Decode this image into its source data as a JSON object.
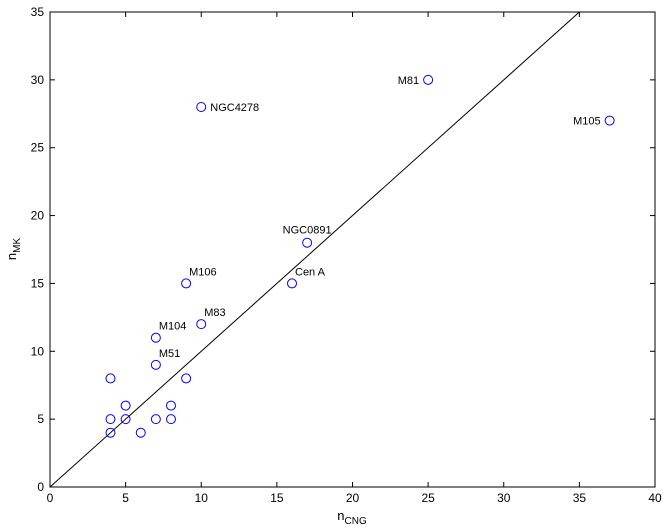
{
  "chart_data": {
    "type": "scatter",
    "title": "",
    "xlabel": "n",
    "xlabel_sub": "CNG",
    "ylabel": "n",
    "ylabel_sub": "MK",
    "xlim": [
      0,
      40
    ],
    "ylim": [
      0,
      35
    ],
    "xticks": [
      0,
      5,
      10,
      15,
      20,
      25,
      30,
      35,
      40
    ],
    "yticks": [
      0,
      5,
      10,
      15,
      20,
      25,
      30,
      35
    ],
    "grid": false,
    "marker": "open-circle",
    "marker_color": "#0000ff",
    "line_color": "#000000",
    "reference_line": {
      "x": [
        0,
        35
      ],
      "y": [
        0,
        35
      ]
    },
    "points": [
      {
        "x": 25,
        "y": 30,
        "label": "M81"
      },
      {
        "x": 37,
        "y": 27,
        "label": "M105"
      },
      {
        "x": 10,
        "y": 28,
        "label": "NGC4278"
      },
      {
        "x": 17,
        "y": 18,
        "label": "NGC0891"
      },
      {
        "x": 16,
        "y": 15,
        "label": "Cen A"
      },
      {
        "x": 9,
        "y": 15,
        "label": "M106"
      },
      {
        "x": 10,
        "y": 12,
        "label": "M83"
      },
      {
        "x": 7,
        "y": 11,
        "label": "M104"
      },
      {
        "x": 7,
        "y": 9,
        "label": "M51"
      },
      {
        "x": 4,
        "y": 8,
        "label": ""
      },
      {
        "x": 9,
        "y": 8,
        "label": ""
      },
      {
        "x": 5,
        "y": 6,
        "label": ""
      },
      {
        "x": 8,
        "y": 6,
        "label": ""
      },
      {
        "x": 4,
        "y": 5,
        "label": ""
      },
      {
        "x": 5,
        "y": 5,
        "label": ""
      },
      {
        "x": 7,
        "y": 5,
        "label": ""
      },
      {
        "x": 8,
        "y": 5,
        "label": ""
      },
      {
        "x": 4,
        "y": 4,
        "label": ""
      },
      {
        "x": 6,
        "y": 4,
        "label": ""
      }
    ]
  }
}
